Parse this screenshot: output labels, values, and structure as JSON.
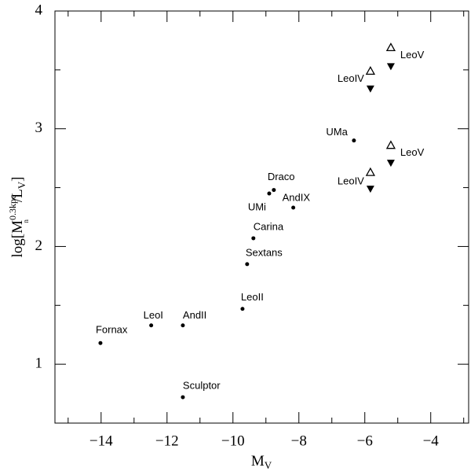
{
  "chart_data": {
    "type": "scatter",
    "xlabel": [
      "M",
      "V"
    ],
    "ylabel": [
      "log[M",
      "0.3kpc",
      "n",
      "/L",
      "V",
      "]"
    ],
    "xlim": [
      -15.4,
      -2.85
    ],
    "ylim": [
      0.5,
      4.0
    ],
    "xticks": [
      {
        "value": -14,
        "label": "−14"
      },
      {
        "value": -12,
        "label": "−12"
      },
      {
        "value": -10,
        "label": "−10"
      },
      {
        "value": -8,
        "label": "−8"
      },
      {
        "value": -6,
        "label": "−6"
      },
      {
        "value": -4,
        "label": "−4"
      }
    ],
    "xminor_ticks": [
      -15,
      -13,
      -11,
      -9,
      -7,
      -5,
      -3
    ],
    "yticks": [
      1,
      2,
      3,
      4
    ],
    "yminor_ticks": [
      1.5,
      2.5,
      3.5
    ],
    "series": [
      {
        "marker": "dot",
        "color": "#000",
        "labels": [
          "Fornax",
          "LeoI",
          "AndII",
          "Sculptor",
          "LeoII",
          "Sextans",
          "Carina",
          "UMi",
          "Draco",
          "AndIX",
          "UMa"
        ],
        "x": [
          -14.02,
          -12.48,
          -11.52,
          -11.52,
          -9.71,
          -9.57,
          -9.38,
          -8.9,
          -8.76,
          -8.17,
          -6.33
        ],
        "values": [
          1.18,
          1.33,
          1.33,
          0.72,
          1.47,
          1.85,
          2.07,
          2.45,
          2.48,
          2.33,
          2.9
        ]
      },
      {
        "marker": "triangle-open",
        "color": "#000",
        "labels": [
          "LeoIV",
          "LeoV",
          "LeoIV",
          "LeoV"
        ],
        "x": [
          -5.83,
          -5.21,
          -5.83,
          -5.21
        ],
        "values": [
          3.49,
          3.69,
          2.63,
          2.86
        ]
      },
      {
        "marker": "triangle-down",
        "color": "#000",
        "x": [
          -5.83,
          -5.21,
          -5.83,
          -5.21
        ],
        "values": [
          3.34,
          3.53,
          2.49,
          2.71
        ]
      }
    ]
  }
}
